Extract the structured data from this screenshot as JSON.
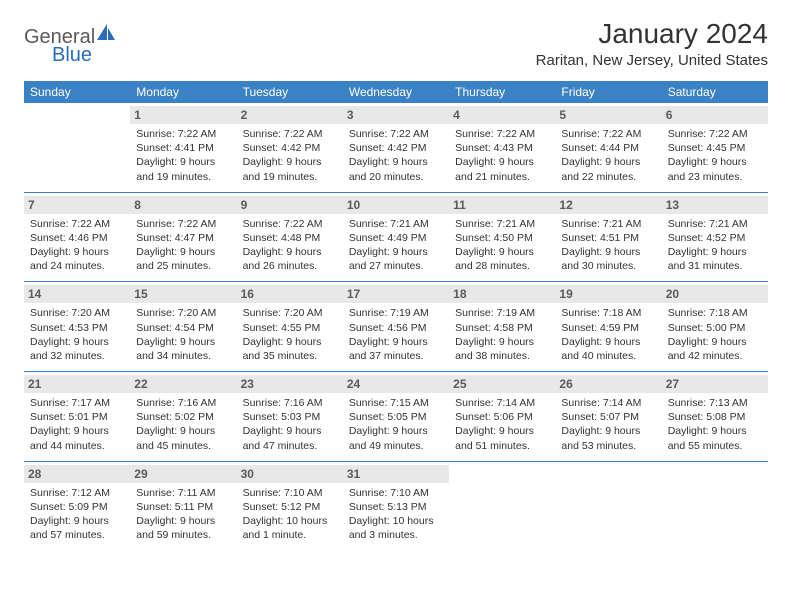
{
  "logo": {
    "text1": "General",
    "text2": "Blue"
  },
  "title": "January 2024",
  "location": "Raritan, New Jersey, United States",
  "weekdays": [
    "Sunday",
    "Monday",
    "Tuesday",
    "Wednesday",
    "Thursday",
    "Friday",
    "Saturday"
  ],
  "colors": {
    "header_bg": "#3b82c4",
    "daynum_bg": "#e8e8e8",
    "logo_gray": "#5a5a5a",
    "logo_blue": "#2a6db8"
  },
  "weeks": [
    [
      {
        "n": "",
        "sr": "",
        "ss": "",
        "dl": "",
        "empty": true
      },
      {
        "n": "1",
        "sr": "Sunrise: 7:22 AM",
        "ss": "Sunset: 4:41 PM",
        "dl": "Daylight: 9 hours and 19 minutes."
      },
      {
        "n": "2",
        "sr": "Sunrise: 7:22 AM",
        "ss": "Sunset: 4:42 PM",
        "dl": "Daylight: 9 hours and 19 minutes."
      },
      {
        "n": "3",
        "sr": "Sunrise: 7:22 AM",
        "ss": "Sunset: 4:42 PM",
        "dl": "Daylight: 9 hours and 20 minutes."
      },
      {
        "n": "4",
        "sr": "Sunrise: 7:22 AM",
        "ss": "Sunset: 4:43 PM",
        "dl": "Daylight: 9 hours and 21 minutes."
      },
      {
        "n": "5",
        "sr": "Sunrise: 7:22 AM",
        "ss": "Sunset: 4:44 PM",
        "dl": "Daylight: 9 hours and 22 minutes."
      },
      {
        "n": "6",
        "sr": "Sunrise: 7:22 AM",
        "ss": "Sunset: 4:45 PM",
        "dl": "Daylight: 9 hours and 23 minutes."
      }
    ],
    [
      {
        "n": "7",
        "sr": "Sunrise: 7:22 AM",
        "ss": "Sunset: 4:46 PM",
        "dl": "Daylight: 9 hours and 24 minutes."
      },
      {
        "n": "8",
        "sr": "Sunrise: 7:22 AM",
        "ss": "Sunset: 4:47 PM",
        "dl": "Daylight: 9 hours and 25 minutes."
      },
      {
        "n": "9",
        "sr": "Sunrise: 7:22 AM",
        "ss": "Sunset: 4:48 PM",
        "dl": "Daylight: 9 hours and 26 minutes."
      },
      {
        "n": "10",
        "sr": "Sunrise: 7:21 AM",
        "ss": "Sunset: 4:49 PM",
        "dl": "Daylight: 9 hours and 27 minutes."
      },
      {
        "n": "11",
        "sr": "Sunrise: 7:21 AM",
        "ss": "Sunset: 4:50 PM",
        "dl": "Daylight: 9 hours and 28 minutes."
      },
      {
        "n": "12",
        "sr": "Sunrise: 7:21 AM",
        "ss": "Sunset: 4:51 PM",
        "dl": "Daylight: 9 hours and 30 minutes."
      },
      {
        "n": "13",
        "sr": "Sunrise: 7:21 AM",
        "ss": "Sunset: 4:52 PM",
        "dl": "Daylight: 9 hours and 31 minutes."
      }
    ],
    [
      {
        "n": "14",
        "sr": "Sunrise: 7:20 AM",
        "ss": "Sunset: 4:53 PM",
        "dl": "Daylight: 9 hours and 32 minutes."
      },
      {
        "n": "15",
        "sr": "Sunrise: 7:20 AM",
        "ss": "Sunset: 4:54 PM",
        "dl": "Daylight: 9 hours and 34 minutes."
      },
      {
        "n": "16",
        "sr": "Sunrise: 7:20 AM",
        "ss": "Sunset: 4:55 PM",
        "dl": "Daylight: 9 hours and 35 minutes."
      },
      {
        "n": "17",
        "sr": "Sunrise: 7:19 AM",
        "ss": "Sunset: 4:56 PM",
        "dl": "Daylight: 9 hours and 37 minutes."
      },
      {
        "n": "18",
        "sr": "Sunrise: 7:19 AM",
        "ss": "Sunset: 4:58 PM",
        "dl": "Daylight: 9 hours and 38 minutes."
      },
      {
        "n": "19",
        "sr": "Sunrise: 7:18 AM",
        "ss": "Sunset: 4:59 PM",
        "dl": "Daylight: 9 hours and 40 minutes."
      },
      {
        "n": "20",
        "sr": "Sunrise: 7:18 AM",
        "ss": "Sunset: 5:00 PM",
        "dl": "Daylight: 9 hours and 42 minutes."
      }
    ],
    [
      {
        "n": "21",
        "sr": "Sunrise: 7:17 AM",
        "ss": "Sunset: 5:01 PM",
        "dl": "Daylight: 9 hours and 44 minutes."
      },
      {
        "n": "22",
        "sr": "Sunrise: 7:16 AM",
        "ss": "Sunset: 5:02 PM",
        "dl": "Daylight: 9 hours and 45 minutes."
      },
      {
        "n": "23",
        "sr": "Sunrise: 7:16 AM",
        "ss": "Sunset: 5:03 PM",
        "dl": "Daylight: 9 hours and 47 minutes."
      },
      {
        "n": "24",
        "sr": "Sunrise: 7:15 AM",
        "ss": "Sunset: 5:05 PM",
        "dl": "Daylight: 9 hours and 49 minutes."
      },
      {
        "n": "25",
        "sr": "Sunrise: 7:14 AM",
        "ss": "Sunset: 5:06 PM",
        "dl": "Daylight: 9 hours and 51 minutes."
      },
      {
        "n": "26",
        "sr": "Sunrise: 7:14 AM",
        "ss": "Sunset: 5:07 PM",
        "dl": "Daylight: 9 hours and 53 minutes."
      },
      {
        "n": "27",
        "sr": "Sunrise: 7:13 AM",
        "ss": "Sunset: 5:08 PM",
        "dl": "Daylight: 9 hours and 55 minutes."
      }
    ],
    [
      {
        "n": "28",
        "sr": "Sunrise: 7:12 AM",
        "ss": "Sunset: 5:09 PM",
        "dl": "Daylight: 9 hours and 57 minutes."
      },
      {
        "n": "29",
        "sr": "Sunrise: 7:11 AM",
        "ss": "Sunset: 5:11 PM",
        "dl": "Daylight: 9 hours and 59 minutes."
      },
      {
        "n": "30",
        "sr": "Sunrise: 7:10 AM",
        "ss": "Sunset: 5:12 PM",
        "dl": "Daylight: 10 hours and 1 minute."
      },
      {
        "n": "31",
        "sr": "Sunrise: 7:10 AM",
        "ss": "Sunset: 5:13 PM",
        "dl": "Daylight: 10 hours and 3 minutes."
      },
      {
        "n": "",
        "sr": "",
        "ss": "",
        "dl": "",
        "empty": true
      },
      {
        "n": "",
        "sr": "",
        "ss": "",
        "dl": "",
        "empty": true
      },
      {
        "n": "",
        "sr": "",
        "ss": "",
        "dl": "",
        "empty": true
      }
    ]
  ]
}
